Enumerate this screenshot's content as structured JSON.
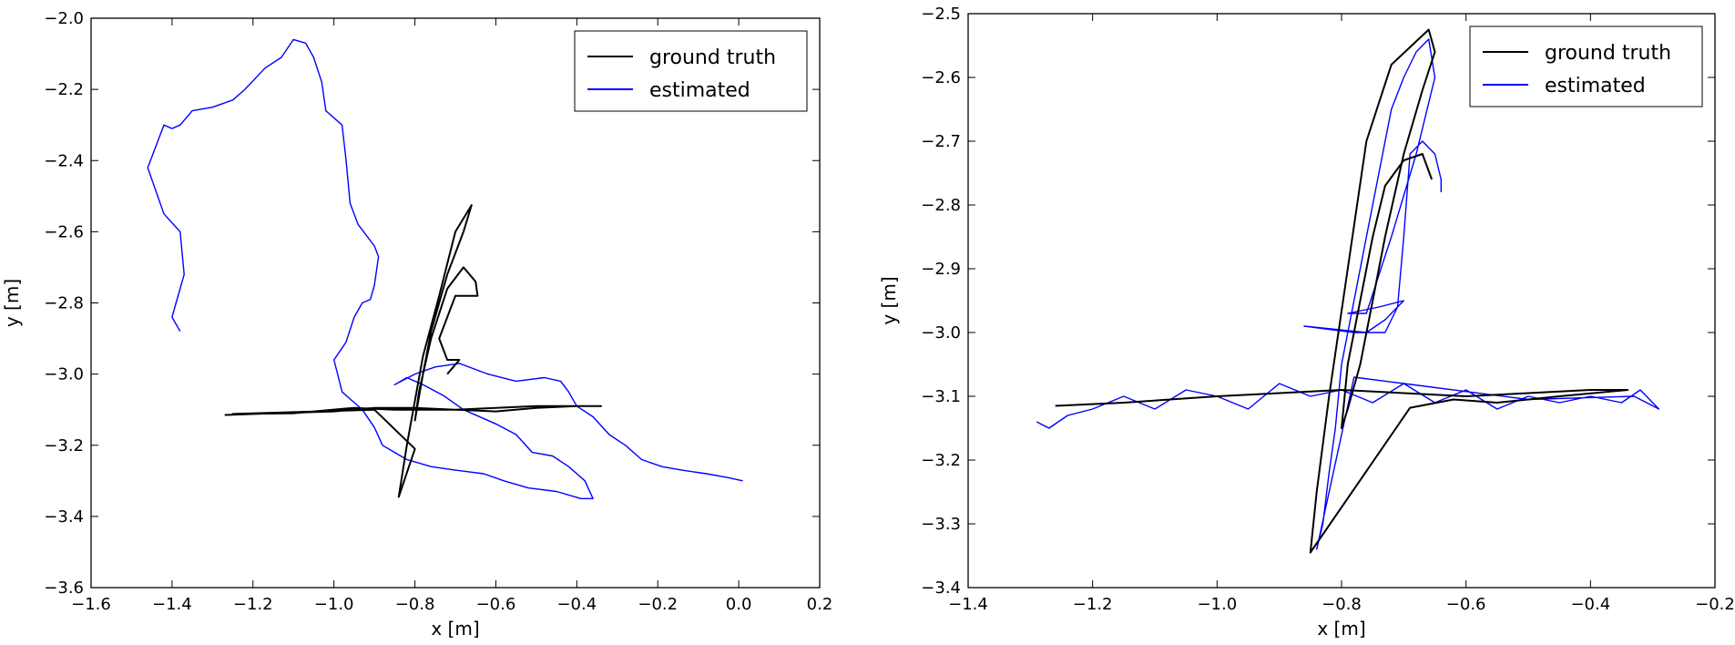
{
  "chart_data": [
    {
      "type": "line",
      "xlabel": "x [m]",
      "ylabel": "y [m]",
      "xlim": [
        -1.6,
        0.2
      ],
      "ylim": [
        -3.6,
        -2.0
      ],
      "xticks": [
        "−1.6",
        "−1.4",
        "−1.2",
        "−1.0",
        "−0.8",
        "−0.6",
        "−0.4",
        "−0.2",
        "0.0",
        "0.2"
      ],
      "yticks": [
        "−2.0",
        "−2.2",
        "−2.4",
        "−2.6",
        "−2.8",
        "−3.0",
        "−3.2",
        "−3.4",
        "−3.6"
      ],
      "xtick_values": [
        -1.6,
        -1.4,
        -1.2,
        -1.0,
        -0.8,
        -0.6,
        -0.4,
        -0.2,
        0.0,
        0.2
      ],
      "ytick_values": [
        -2.0,
        -2.2,
        -2.4,
        -2.6,
        -2.8,
        -3.0,
        -3.2,
        -3.4,
        -3.6
      ],
      "legend": {
        "placement": "top-right"
      },
      "series": [
        {
          "name": "ground truth",
          "color": "#000000",
          "points": [
            [
              -1.27,
              -3.115
            ],
            [
              -1.15,
              -3.11
            ],
            [
              -1.0,
              -3.105
            ],
            [
              -0.9,
              -3.095
            ],
            [
              -0.8,
              -3.095
            ],
            [
              -0.7,
              -3.1
            ],
            [
              -0.6,
              -3.105
            ],
            [
              -0.5,
              -3.095
            ],
            [
              -0.4,
              -3.09
            ],
            [
              -0.34,
              -3.09
            ],
            [
              -0.5,
              -3.09
            ],
            [
              -0.7,
              -3.1
            ],
            [
              -0.85,
              -3.1
            ],
            [
              -0.95,
              -3.095
            ],
            [
              -1.1,
              -3.11
            ],
            [
              -1.25,
              -3.112
            ],
            [
              -0.9,
              -3.1
            ],
            [
              -0.8,
              -3.21
            ],
            [
              -0.84,
              -3.345
            ],
            [
              -0.82,
              -3.2
            ],
            [
              -0.78,
              -2.95
            ],
            [
              -0.74,
              -2.78
            ],
            [
              -0.7,
              -2.6
            ],
            [
              -0.66,
              -2.525
            ],
            [
              -0.68,
              -2.6
            ],
            [
              -0.72,
              -2.72
            ],
            [
              -0.76,
              -2.88
            ],
            [
              -0.78,
              -3.0
            ],
            [
              -0.8,
              -3.13
            ],
            [
              -0.79,
              -3.05
            ],
            [
              -0.76,
              -2.9
            ],
            [
              -0.72,
              -2.76
            ],
            [
              -0.68,
              -2.7
            ],
            [
              -0.65,
              -2.74
            ],
            [
              -0.645,
              -2.78
            ],
            [
              -0.7,
              -2.78
            ],
            [
              -0.74,
              -2.9
            ],
            [
              -0.72,
              -2.96
            ],
            [
              -0.69,
              -2.96
            ],
            [
              -0.72,
              -3.0
            ]
          ]
        },
        {
          "name": "estimated",
          "color": "#0000ff",
          "points": [
            [
              -1.38,
              -2.88
            ],
            [
              -1.4,
              -2.84
            ],
            [
              -1.39,
              -2.8
            ],
            [
              -1.37,
              -2.72
            ],
            [
              -1.38,
              -2.6
            ],
            [
              -1.42,
              -2.55
            ],
            [
              -1.46,
              -2.42
            ],
            [
              -1.42,
              -2.3
            ],
            [
              -1.4,
              -2.31
            ],
            [
              -1.38,
              -2.3
            ],
            [
              -1.35,
              -2.26
            ],
            [
              -1.3,
              -2.25
            ],
            [
              -1.25,
              -2.23
            ],
            [
              -1.22,
              -2.2
            ],
            [
              -1.17,
              -2.14
            ],
            [
              -1.13,
              -2.11
            ],
            [
              -1.1,
              -2.06
            ],
            [
              -1.07,
              -2.07
            ],
            [
              -1.05,
              -2.11
            ],
            [
              -1.03,
              -2.18
            ],
            [
              -1.02,
              -2.26
            ],
            [
              -0.98,
              -2.3
            ],
            [
              -0.97,
              -2.4
            ],
            [
              -0.96,
              -2.52
            ],
            [
              -0.94,
              -2.58
            ],
            [
              -0.9,
              -2.64
            ],
            [
              -0.89,
              -2.67
            ],
            [
              -0.9,
              -2.75
            ],
            [
              -0.91,
              -2.79
            ],
            [
              -0.93,
              -2.8
            ],
            [
              -0.95,
              -2.84
            ],
            [
              -0.97,
              -2.91
            ],
            [
              -1.0,
              -2.96
            ],
            [
              -0.98,
              -3.05
            ],
            [
              -0.95,
              -3.08
            ],
            [
              -0.93,
              -3.1
            ],
            [
              -0.9,
              -3.15
            ],
            [
              -0.88,
              -3.2
            ],
            [
              -0.85,
              -3.22
            ],
            [
              -0.82,
              -3.24
            ],
            [
              -0.76,
              -3.26
            ],
            [
              -0.7,
              -3.27
            ],
            [
              -0.63,
              -3.28
            ],
            [
              -0.58,
              -3.3
            ],
            [
              -0.52,
              -3.32
            ],
            [
              -0.45,
              -3.33
            ],
            [
              -0.39,
              -3.35
            ],
            [
              -0.36,
              -3.35
            ],
            [
              -0.38,
              -3.3
            ],
            [
              -0.42,
              -3.26
            ],
            [
              -0.46,
              -3.23
            ],
            [
              -0.51,
              -3.22
            ],
            [
              -0.55,
              -3.17
            ],
            [
              -0.6,
              -3.14
            ],
            [
              -0.68,
              -3.1
            ],
            [
              -0.73,
              -3.06
            ],
            [
              -0.78,
              -3.03
            ],
            [
              -0.82,
              -3.01
            ],
            [
              -0.85,
              -3.03
            ],
            [
              -0.8,
              -3.0
            ],
            [
              -0.75,
              -2.98
            ],
            [
              -0.69,
              -2.97
            ],
            [
              -0.62,
              -3.0
            ],
            [
              -0.55,
              -3.02
            ],
            [
              -0.48,
              -3.01
            ],
            [
              -0.44,
              -3.02
            ],
            [
              -0.42,
              -3.05
            ],
            [
              -0.4,
              -3.09
            ],
            [
              -0.36,
              -3.12
            ],
            [
              -0.32,
              -3.17
            ],
            [
              -0.28,
              -3.2
            ],
            [
              -0.24,
              -3.24
            ],
            [
              -0.19,
              -3.26
            ],
            [
              -0.14,
              -3.27
            ],
            [
              -0.08,
              -3.28
            ],
            [
              -0.03,
              -3.29
            ],
            [
              0.01,
              -3.3
            ]
          ]
        }
      ]
    },
    {
      "type": "line",
      "xlabel": "x [m]",
      "ylabel": "y [m]",
      "xlim": [
        -1.4,
        -0.2
      ],
      "ylim": [
        -3.4,
        -2.5
      ],
      "xticks": [
        "−1.4",
        "−1.2",
        "−1.0",
        "−0.8",
        "−0.6",
        "−0.4",
        "−0.2"
      ],
      "yticks": [
        "−2.5",
        "−2.6",
        "−2.7",
        "−2.8",
        "−2.9",
        "−3.0",
        "−3.1",
        "−3.2",
        "−3.3",
        "−3.4"
      ],
      "xtick_values": [
        -1.4,
        -1.2,
        -1.0,
        -0.8,
        -0.6,
        -0.4,
        -0.2
      ],
      "ytick_values": [
        -2.5,
        -2.6,
        -2.7,
        -2.8,
        -2.9,
        -3.0,
        -3.1,
        -3.2,
        -3.3,
        -3.4
      ],
      "legend": {
        "placement": "top-right"
      },
      "series": [
        {
          "name": "ground truth",
          "color": "#000000",
          "points": [
            [
              -1.26,
              -3.115
            ],
            [
              -1.15,
              -3.11
            ],
            [
              -1.0,
              -3.1
            ],
            [
              -0.9,
              -3.095
            ],
            [
              -0.8,
              -3.09
            ],
            [
              -0.7,
              -3.095
            ],
            [
              -0.6,
              -3.1
            ],
            [
              -0.5,
              -3.095
            ],
            [
              -0.4,
              -3.09
            ],
            [
              -0.34,
              -3.09
            ],
            [
              -0.45,
              -3.1
            ],
            [
              -0.55,
              -3.11
            ],
            [
              -0.62,
              -3.105
            ],
            [
              -0.69,
              -3.118
            ],
            [
              -0.85,
              -3.345
            ],
            [
              -0.84,
              -3.25
            ],
            [
              -0.82,
              -3.1
            ],
            [
              -0.79,
              -2.9
            ],
            [
              -0.76,
              -2.7
            ],
            [
              -0.72,
              -2.58
            ],
            [
              -0.66,
              -2.525
            ],
            [
              -0.65,
              -2.56
            ],
            [
              -0.67,
              -2.62
            ],
            [
              -0.7,
              -2.72
            ],
            [
              -0.73,
              -2.85
            ],
            [
              -0.75,
              -2.95
            ],
            [
              -0.77,
              -3.05
            ],
            [
              -0.79,
              -3.12
            ],
            [
              -0.8,
              -3.15
            ],
            [
              -0.79,
              -3.05
            ],
            [
              -0.77,
              -2.95
            ],
            [
              -0.75,
              -2.85
            ],
            [
              -0.73,
              -2.77
            ],
            [
              -0.7,
              -2.73
            ],
            [
              -0.67,
              -2.72
            ],
            [
              -0.655,
              -2.76
            ]
          ]
        },
        {
          "name": "estimated",
          "color": "#0000ff",
          "points": [
            [
              -1.29,
              -3.14
            ],
            [
              -1.27,
              -3.15
            ],
            [
              -1.24,
              -3.13
            ],
            [
              -1.2,
              -3.12
            ],
            [
              -1.15,
              -3.1
            ],
            [
              -1.1,
              -3.12
            ],
            [
              -1.05,
              -3.09
            ],
            [
              -1.0,
              -3.1
            ],
            [
              -0.95,
              -3.12
            ],
            [
              -0.9,
              -3.08
            ],
            [
              -0.85,
              -3.1
            ],
            [
              -0.8,
              -3.09
            ],
            [
              -0.75,
              -3.11
            ],
            [
              -0.7,
              -3.08
            ],
            [
              -0.65,
              -3.11
            ],
            [
              -0.6,
              -3.09
            ],
            [
              -0.55,
              -3.12
            ],
            [
              -0.5,
              -3.1
            ],
            [
              -0.45,
              -3.11
            ],
            [
              -0.4,
              -3.1
            ],
            [
              -0.35,
              -3.11
            ],
            [
              -0.32,
              -3.09
            ],
            [
              -0.29,
              -3.12
            ],
            [
              -0.33,
              -3.1
            ],
            [
              -0.5,
              -3.105
            ],
            [
              -0.7,
              -3.08
            ],
            [
              -0.78,
              -3.07
            ],
            [
              -0.84,
              -3.34
            ],
            [
              -0.83,
              -3.3
            ],
            [
              -0.82,
              -3.22
            ],
            [
              -0.81,
              -3.15
            ],
            [
              -0.8,
              -3.05
            ],
            [
              -0.78,
              -2.95
            ],
            [
              -0.76,
              -2.85
            ],
            [
              -0.74,
              -2.75
            ],
            [
              -0.72,
              -2.65
            ],
            [
              -0.7,
              -2.6
            ],
            [
              -0.68,
              -2.56
            ],
            [
              -0.66,
              -2.54
            ],
            [
              -0.65,
              -2.6
            ],
            [
              -0.68,
              -2.72
            ],
            [
              -0.72,
              -2.85
            ],
            [
              -0.76,
              -2.97
            ],
            [
              -0.79,
              -2.97
            ],
            [
              -0.74,
              -2.96
            ],
            [
              -0.7,
              -2.95
            ],
            [
              -0.73,
              -2.98
            ],
            [
              -0.76,
              -3.0
            ],
            [
              -0.86,
              -2.99
            ],
            [
              -0.78,
              -3.0
            ],
            [
              -0.73,
              -3.0
            ],
            [
              -0.71,
              -2.96
            ],
            [
              -0.7,
              -2.85
            ],
            [
              -0.69,
              -2.72
            ],
            [
              -0.67,
              -2.7
            ],
            [
              -0.65,
              -2.72
            ],
            [
              -0.64,
              -2.76
            ],
            [
              -0.64,
              -2.78
            ]
          ]
        }
      ]
    }
  ]
}
